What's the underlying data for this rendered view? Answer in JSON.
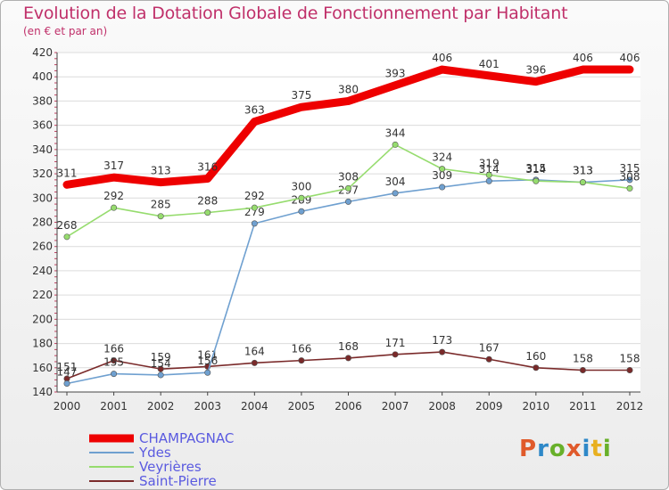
{
  "title": "Evolution de la Dotation Globale de Fonctionnement par Habitant",
  "subtitle": "(en € et par an)",
  "logo": {
    "text": "Proxiti",
    "colors": [
      "#e05a2b",
      "#2e88c8",
      "#68b02a",
      "#e05a2b",
      "#2e88c8",
      "#e8b020",
      "#68b02a"
    ]
  },
  "chart_data": {
    "type": "line",
    "x": [
      "2000",
      "2001",
      "2002",
      "2003",
      "2004",
      "2005",
      "2006",
      "2007",
      "2008",
      "2009",
      "2010",
      "2011",
      "2012"
    ],
    "ylim": [
      140,
      420
    ],
    "yticks": [
      140,
      160,
      180,
      200,
      220,
      240,
      260,
      280,
      300,
      320,
      340,
      360,
      380,
      400,
      420
    ],
    "grid": "horizontal",
    "legend_position": "bottom-left",
    "series": [
      {
        "name": "CHAMPAGNAC",
        "color": "#ee0000",
        "values": [
          311,
          317,
          313,
          316,
          363,
          375,
          380,
          393,
          406,
          401,
          396,
          406,
          406
        ]
      },
      {
        "name": "Ydes",
        "color": "#6fa0d0",
        "values": [
          147,
          155,
          154,
          156,
          279,
          289,
          297,
          304,
          309,
          314,
          315,
          313,
          315
        ]
      },
      {
        "name": "Veyrières",
        "color": "#96dc6e",
        "values": [
          268,
          292,
          285,
          288,
          292,
          300,
          308,
          344,
          324,
          319,
          314,
          313,
          308
        ]
      },
      {
        "name": "Saint-Pierre",
        "color": "#7a2a2a",
        "values": [
          151,
          166,
          159,
          161,
          164,
          166,
          168,
          171,
          173,
          167,
          160,
          158,
          158
        ]
      }
    ]
  }
}
